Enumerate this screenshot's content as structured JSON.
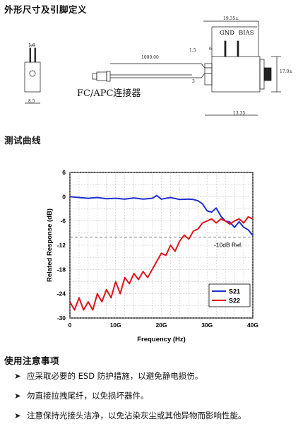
{
  "sections": {
    "dimensions": "外形尺寸及引脚定义",
    "curve": "测试曲线",
    "notes": "使用注意事项"
  },
  "drawing": {
    "dim_1_6": "1.6",
    "dim_8_5": "8.5",
    "dim_1000": "1000.00",
    "dim_1_5": "1.5",
    "dim_6": "6",
    "dim_19_35": "19.35±",
    "label_gnd": "GND",
    "label_bias": "BIAS",
    "dim_3": "3",
    "dim_17": "17.0±",
    "dim_13_35": "13.35",
    "connector_label": "FC/APC连接器"
  },
  "chart_data": {
    "type": "line",
    "xlabel": "Frequency (Hz)",
    "ylabel": "Related Response (dB)",
    "x_ticks": [
      "0",
      "10G",
      "20G",
      "30G",
      "40G"
    ],
    "y_ticks": [
      "6",
      "0",
      "-6",
      "-12",
      "-18",
      "-24",
      "-30"
    ],
    "xlim": [
      0,
      40
    ],
    "ylim": [
      -30,
      6
    ],
    "grid": true,
    "legend_position": "bottom-right",
    "reference": {
      "label": "-10dB Ref.",
      "y": -10
    },
    "series": [
      {
        "name": "S21",
        "color": "#1f2fd0",
        "x": [
          0,
          2,
          4,
          6,
          8,
          10,
          12,
          14,
          16,
          18,
          19,
          20,
          22,
          24,
          26,
          27,
          28,
          29,
          30,
          31,
          32,
          33,
          34,
          35,
          36,
          37,
          38,
          39,
          40
        ],
        "y": [
          0,
          -0.2,
          -0.4,
          -0.2,
          -0.5,
          -0.4,
          -0.6,
          -0.3,
          -0.6,
          -0.4,
          0.3,
          -0.6,
          -0.2,
          -0.7,
          -0.6,
          -0.7,
          -1.0,
          -1.8,
          -3.5,
          -3.8,
          -2.8,
          -4.8,
          -6.0,
          -6.3,
          -7.6,
          -6.2,
          -7.5,
          -8.2,
          -9.6
        ]
      },
      {
        "name": "S22",
        "color": "#e0141a",
        "x": [
          0,
          1,
          2,
          3,
          4,
          5,
          6,
          7,
          8,
          9,
          10,
          11,
          12,
          13,
          14,
          15,
          16,
          17,
          18,
          19,
          20,
          21,
          22,
          23,
          24,
          25,
          26,
          27,
          28,
          29,
          30,
          31,
          32,
          33,
          34,
          35,
          36,
          37,
          38,
          39,
          40
        ],
        "y": [
          -26,
          -28,
          -25,
          -28,
          -26,
          -28,
          -24,
          -26,
          -23,
          -25,
          -21,
          -24,
          -20,
          -21.5,
          -19,
          -20.5,
          -18.5,
          -20,
          -18,
          -16,
          -14,
          -14.5,
          -12,
          -13.5,
          -11,
          -9.5,
          -10.5,
          -8.5,
          -8,
          -6.5,
          -6,
          -5.5,
          -6.5,
          -5.5,
          -6,
          -6.8,
          -6,
          -5.5,
          -6.5,
          -5,
          -5.5
        ]
      }
    ]
  },
  "notes": [
    "应采取必要的 ESD 防护措施，以避免静电损伤。",
    "勿直接拉拽尾纤，以免损坏器件。",
    "注意保持光接头洁净，以免沾染灰尘或其他异物而影响性能。"
  ]
}
